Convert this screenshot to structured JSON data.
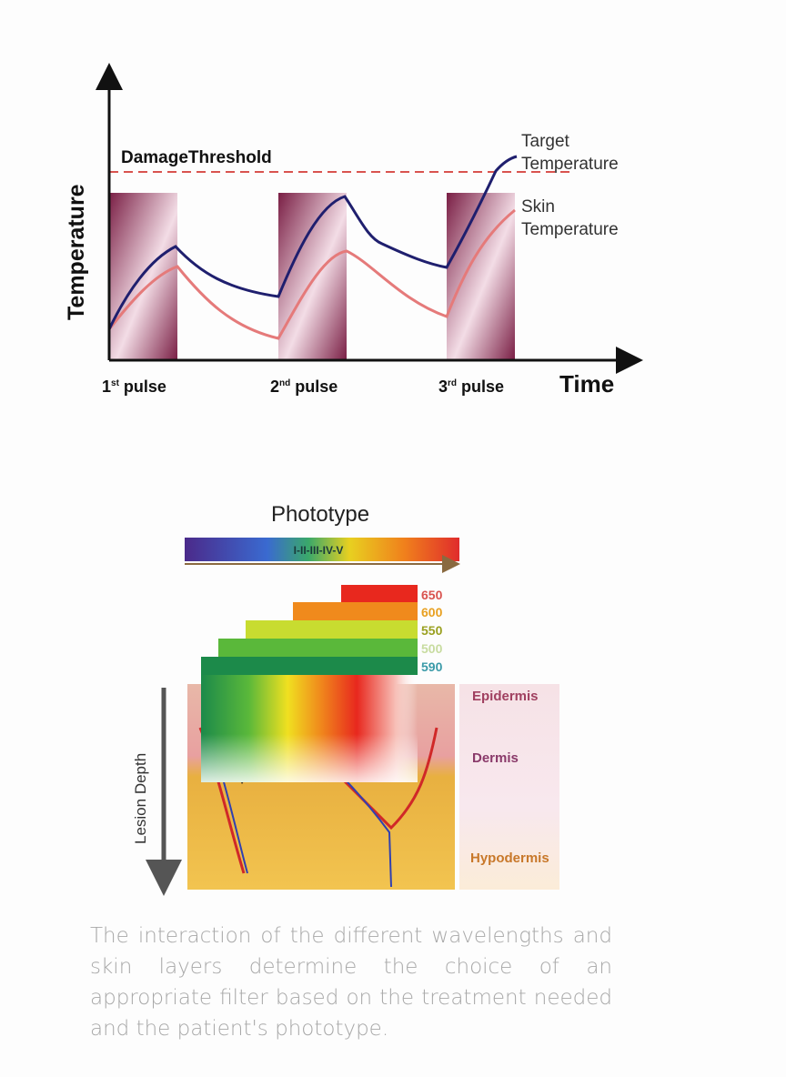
{
  "chart_data": {
    "type": "line",
    "ylabel": "Temperature",
    "xlabel": "Time",
    "threshold_label": "DamageThreshold",
    "categories": [
      "1st pulse",
      "2nd pulse",
      "3rd pulse"
    ],
    "pulse_labels": [
      {
        "num": "1",
        "sup": "st",
        "word": "pulse"
      },
      {
        "num": "2",
        "sup": "nd",
        "word": "pulse"
      },
      {
        "num": "3",
        "sup": "rd",
        "word": "pulse"
      }
    ],
    "series": [
      {
        "name": "Target Temperature",
        "label_lines": [
          "Target",
          "Temperature"
        ],
        "color": "#1f1f6e"
      },
      {
        "name": "Skin Temperature",
        "label_lines": [
          "Skin",
          "Temperature"
        ],
        "color": "#e57a7a"
      }
    ],
    "colors": {
      "threshold": "#d9534f",
      "pulse": "#7a1f45"
    }
  },
  "diagram": {
    "title": "Phototype",
    "phototype_scale": "I-II-III-IV-V",
    "wavelengths": [
      "650",
      "600",
      "550",
      "500",
      "590"
    ],
    "wavelength_colors": [
      "#d9534f",
      "#e8a020",
      "#9aa020",
      "#c8dca0",
      "#3a9aa8"
    ],
    "axis_label": "Lesion Depth",
    "layers": [
      "Epidermis",
      "Dermis",
      "Hypodermis"
    ],
    "layer_colors": [
      "#a04060",
      "#8a3a6a",
      "#c8782a"
    ]
  },
  "caption": "The interaction of the different wavelengths and skin layers determine the choice of an appropriate filter based on the treatment needed and the patient's phototype."
}
